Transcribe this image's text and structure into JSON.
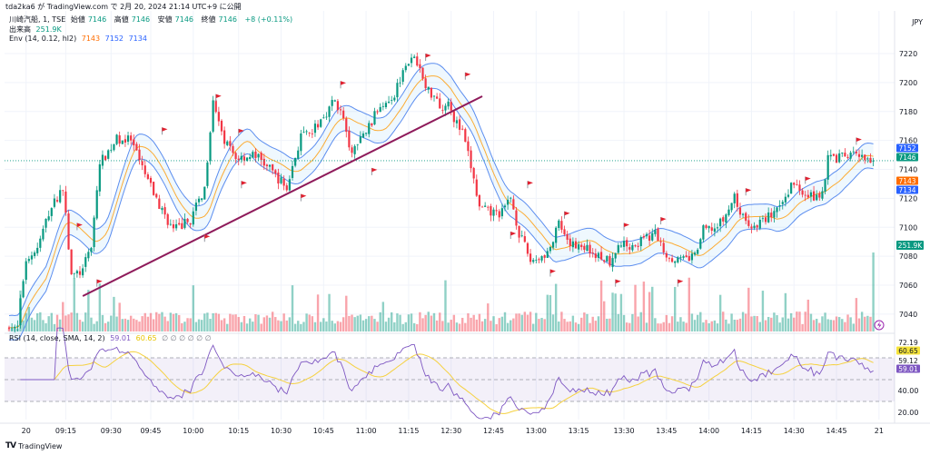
{
  "header": {
    "published": "tda2ka6 が TradingView.com で 2月 20, 2024 21:14 UTC+9 に公開"
  },
  "legend": {
    "symbol": "川崎汽船, 1, TSE",
    "open_label": "始値",
    "open": "7146",
    "high_label": "高値",
    "high": "7146",
    "low_label": "安値",
    "low": "7146",
    "close_label": "終値",
    "close": "7146",
    "change": "+8 (+0.11%)",
    "volume_label": "出来高",
    "volume": "251.9K",
    "env_label": "Env (14, 0.12, hl2)",
    "env_basis": "7143",
    "env_upper": "7152",
    "env_lower": "7134",
    "rsi_label": "RSI (14, close, SMA, 14, 2)",
    "rsi_value": "59.01",
    "rsi_ma": "60.65",
    "hidden_values": "∅ ∅ ∅ ∅ ∅ ∅"
  },
  "currency": "JPY",
  "brand": "TradingView",
  "colors": {
    "up": "#089981",
    "down": "#f23645",
    "env_basis": "#ff9800",
    "env_band": "#5b8def",
    "rsi": "#7e57c2",
    "rsi_ma": "#f5d140",
    "trendline": "#8e1a5a",
    "flag": "#e0202f"
  },
  "price_badges": [
    {
      "label": "7152",
      "value": 7152,
      "color": "#2962ff"
    },
    {
      "label": "7146",
      "value": 7146,
      "color": "#089981"
    },
    {
      "label": "7143",
      "value": 7143,
      "color": "#ff6d00"
    },
    {
      "label": "7134",
      "value": 7134,
      "color": "#2962ff"
    }
  ],
  "volume_badge": {
    "label": "251.9K",
    "color": "#089981"
  },
  "rsi_badges": [
    {
      "label": "72.19",
      "value": 72.19,
      "bg": "",
      "fg": "#131722"
    },
    {
      "label": "60.65",
      "value": 60.65,
      "bg": "#f5e33a",
      "fg": "#131722"
    },
    {
      "label": "59.12",
      "value": 59.12,
      "bg": "",
      "fg": "#131722"
    },
    {
      "label": "59.01",
      "value": 59.01,
      "bg": "#7e57c2",
      "fg": "#ffffff"
    }
  ],
  "chart_data": {
    "type": "candlestick",
    "title": "川崎汽船, 1, TSE",
    "ylim": [
      7025,
      7232
    ],
    "y_ticks": [
      "7040",
      "7060",
      "7080",
      "7100",
      "7120",
      "7140",
      "7160",
      "7180",
      "7200",
      "7220"
    ],
    "rsi_ticks": [
      "40.00",
      "20.00"
    ],
    "rsi_levels": [
      70,
      50,
      30
    ],
    "x_ticks": [
      {
        "label": "20",
        "bar": 6
      },
      {
        "label": "09:15",
        "bar": 20
      },
      {
        "label": "09:30",
        "bar": 36
      },
      {
        "label": "09:45",
        "bar": 50
      },
      {
        "label": "10:00",
        "bar": 65
      },
      {
        "label": "10:15",
        "bar": 81
      },
      {
        "label": "10:30",
        "bar": 96
      },
      {
        "label": "10:45",
        "bar": 111
      },
      {
        "label": "11:00",
        "bar": 126
      },
      {
        "label": "11:15",
        "bar": 141
      },
      {
        "label": "12:30",
        "bar": 156
      },
      {
        "label": "12:45",
        "bar": 171
      },
      {
        "label": "13:00",
        "bar": 186
      },
      {
        "label": "13:15",
        "bar": 201
      },
      {
        "label": "13:30",
        "bar": 217
      },
      {
        "label": "13:45",
        "bar": 232
      },
      {
        "label": "14:00",
        "bar": 247
      },
      {
        "label": "14:15",
        "bar": 262
      },
      {
        "label": "14:30",
        "bar": 277
      },
      {
        "label": "14:45",
        "bar": 292
      },
      {
        "label": "21",
        "bar": 307
      }
    ],
    "bar_count": 306,
    "close_waypoints": [
      [
        0,
        7030
      ],
      [
        3,
        7032
      ],
      [
        5,
        7064
      ],
      [
        6,
        7078
      ],
      [
        10,
        7085
      ],
      [
        14,
        7110
      ],
      [
        19,
        7128
      ],
      [
        22,
        7066
      ],
      [
        26,
        7070
      ],
      [
        29,
        7088
      ],
      [
        32,
        7144
      ],
      [
        38,
        7161
      ],
      [
        43,
        7160
      ],
      [
        46,
        7145
      ],
      [
        53,
        7115
      ],
      [
        58,
        7098
      ],
      [
        64,
        7105
      ],
      [
        69,
        7127
      ],
      [
        72,
        7190
      ],
      [
        75,
        7163
      ],
      [
        80,
        7148
      ],
      [
        87,
        7150
      ],
      [
        93,
        7138
      ],
      [
        98,
        7127
      ],
      [
        103,
        7163
      ],
      [
        106,
        7163
      ],
      [
        111,
        7177
      ],
      [
        115,
        7188
      ],
      [
        118,
        7175
      ],
      [
        120,
        7152
      ],
      [
        123,
        7157
      ],
      [
        128,
        7173
      ],
      [
        131,
        7185
      ],
      [
        136,
        7192
      ],
      [
        140,
        7215
      ],
      [
        144,
        7215
      ],
      [
        147,
        7196
      ],
      [
        151,
        7190
      ],
      [
        153,
        7180
      ],
      [
        155,
        7190
      ],
      [
        157,
        7175
      ],
      [
        160,
        7165
      ],
      [
        163,
        7142
      ],
      [
        166,
        7113
      ],
      [
        170,
        7110
      ],
      [
        174,
        7110
      ],
      [
        177,
        7121
      ],
      [
        180,
        7096
      ],
      [
        184,
        7077
      ],
      [
        188,
        7080
      ],
      [
        191,
        7085
      ],
      [
        194,
        7102
      ],
      [
        197,
        7088
      ],
      [
        202,
        7088
      ],
      [
        208,
        7080
      ],
      [
        212,
        7077
      ],
      [
        215,
        7088
      ],
      [
        221,
        7088
      ],
      [
        228,
        7096
      ],
      [
        232,
        7081
      ],
      [
        237,
        7077
      ],
      [
        242,
        7080
      ],
      [
        245,
        7098
      ],
      [
        250,
        7100
      ],
      [
        253,
        7108
      ],
      [
        256,
        7121
      ],
      [
        259,
        7106
      ],
      [
        263,
        7100
      ],
      [
        268,
        7108
      ],
      [
        272,
        7112
      ],
      [
        276,
        7130
      ],
      [
        279,
        7127
      ],
      [
        284,
        7121
      ],
      [
        287,
        7124
      ],
      [
        289,
        7148
      ],
      [
        293,
        7148
      ],
      [
        298,
        7150
      ],
      [
        303,
        7146
      ],
      [
        305,
        7146
      ]
    ],
    "last_volume": 251900,
    "current_price": 7146,
    "trendline": [
      [
        26,
        7052.5
      ],
      [
        167,
        7190.5
      ]
    ],
    "flags": [
      [
        24,
        7103
      ],
      [
        31,
        7064
      ],
      [
        54,
        7169
      ],
      [
        69,
        7095
      ],
      [
        73,
        7192
      ],
      [
        81,
        7168
      ],
      [
        82,
        7132
      ],
      [
        103,
        7123
      ],
      [
        117,
        7201
      ],
      [
        128,
        7141
      ],
      [
        147,
        7220
      ],
      [
        161,
        7207
      ],
      [
        177,
        7097
      ],
      [
        183,
        7132
      ],
      [
        191,
        7071
      ],
      [
        196,
        7111
      ],
      [
        214,
        7064
      ],
      [
        217,
        7103
      ],
      [
        230,
        7107
      ],
      [
        236,
        7064
      ],
      [
        260,
        7127
      ],
      [
        281,
        7135
      ],
      [
        299,
        7162
      ]
    ],
    "envelope": {
      "length": 14,
      "percent": 0.12,
      "source": "hl2"
    },
    "rsi": {
      "length": 14,
      "ma_length": 14
    }
  }
}
